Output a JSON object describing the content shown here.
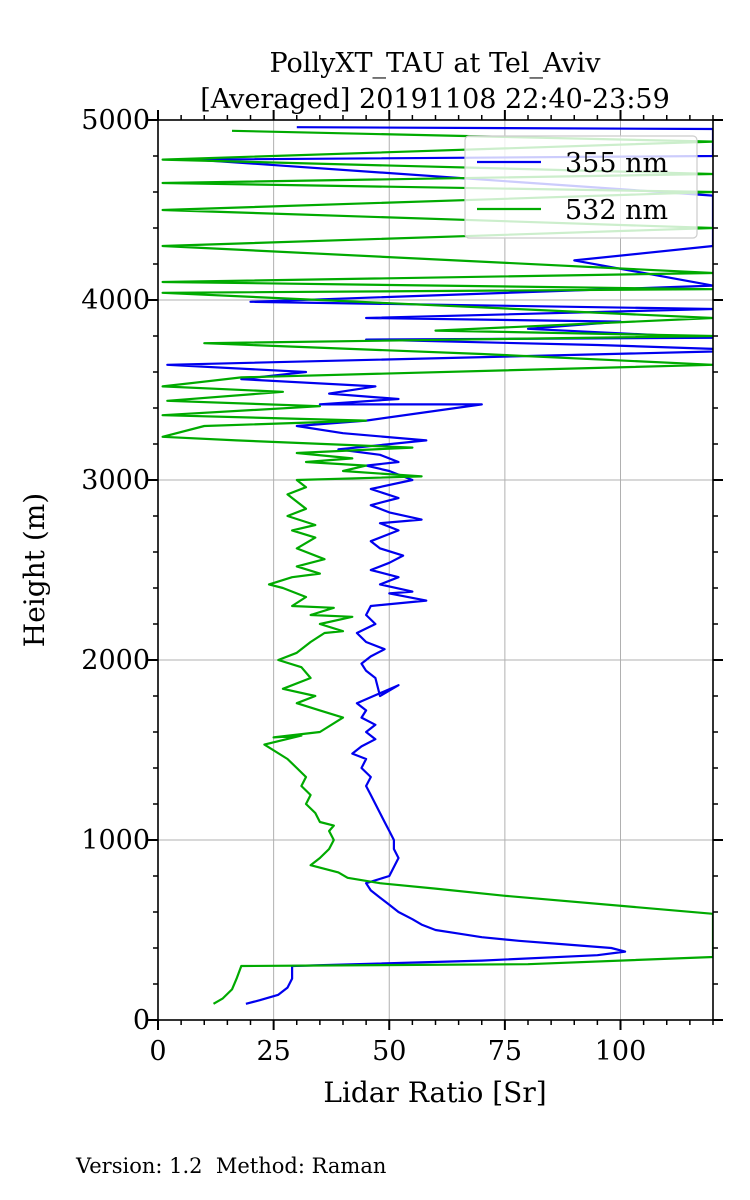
{
  "chart_data": {
    "type": "line",
    "title": "PollyXT_TAU at Tel_Aviv",
    "subtitle": "[Averaged] 20191108 22:40-23:59",
    "xlabel": "Lidar Ratio [Sr]",
    "ylabel": "Height (m)",
    "xlim": [
      0,
      120
    ],
    "ylim": [
      0,
      5000
    ],
    "xticks": [
      0,
      25,
      50,
      75,
      100
    ],
    "yticks": [
      0,
      1000,
      2000,
      3000,
      4000,
      5000
    ],
    "grid": true,
    "legend_position": "top-right",
    "series": [
      {
        "name": "355 nm",
        "color": "#0000ee",
        "points": [
          [
            19,
            90
          ],
          [
            22,
            110
          ],
          [
            26,
            140
          ],
          [
            28,
            180
          ],
          [
            29,
            230
          ],
          [
            29,
            300
          ],
          [
            70,
            330
          ],
          [
            95,
            360
          ],
          [
            101,
            380
          ],
          [
            98,
            400
          ],
          [
            88,
            420
          ],
          [
            78,
            440
          ],
          [
            70,
            460
          ],
          [
            65,
            480
          ],
          [
            60,
            500
          ],
          [
            57,
            530
          ],
          [
            55,
            560
          ],
          [
            52,
            600
          ],
          [
            50,
            640
          ],
          [
            48,
            680
          ],
          [
            46,
            720
          ],
          [
            45,
            760
          ],
          [
            50,
            800
          ],
          [
            51,
            850
          ],
          [
            52,
            900
          ],
          [
            51,
            950
          ],
          [
            51,
            1000
          ],
          [
            50,
            1050
          ],
          [
            49,
            1100
          ],
          [
            48,
            1150
          ],
          [
            47,
            1200
          ],
          [
            46,
            1250
          ],
          [
            45,
            1300
          ],
          [
            46,
            1350
          ],
          [
            44,
            1400
          ],
          [
            45,
            1450
          ],
          [
            42,
            1480
          ],
          [
            44,
            1520
          ],
          [
            47,
            1560
          ],
          [
            45,
            1600
          ],
          [
            47,
            1640
          ],
          [
            44,
            1680
          ],
          [
            45,
            1720
          ],
          [
            43,
            1760
          ],
          [
            52,
            1860
          ],
          [
            48,
            1800
          ],
          [
            47,
            1900
          ],
          [
            45,
            1940
          ],
          [
            44,
            1980
          ],
          [
            46,
            2020
          ],
          [
            49,
            2060
          ],
          [
            45,
            2100
          ],
          [
            43,
            2150
          ],
          [
            47,
            2200
          ],
          [
            45,
            2250
          ],
          [
            46,
            2300
          ],
          [
            58,
            2330
          ],
          [
            50,
            2370
          ],
          [
            55,
            2380
          ],
          [
            48,
            2420
          ],
          [
            52,
            2460
          ],
          [
            46,
            2500
          ],
          [
            50,
            2540
          ],
          [
            53,
            2580
          ],
          [
            48,
            2620
          ],
          [
            46,
            2660
          ],
          [
            52,
            2720
          ],
          [
            48,
            2760
          ],
          [
            57,
            2780
          ],
          [
            50,
            2820
          ],
          [
            46,
            2860
          ],
          [
            52,
            2900
          ],
          [
            46,
            2950
          ],
          [
            55,
            3000
          ],
          [
            50,
            3050
          ],
          [
            45,
            3080
          ],
          [
            52,
            3100
          ],
          [
            48,
            3140
          ],
          [
            39,
            3170
          ],
          [
            58,
            3220
          ],
          [
            40,
            3260
          ],
          [
            30,
            3300
          ],
          [
            45,
            3330
          ],
          [
            70,
            3420
          ],
          [
            35,
            3420
          ],
          [
            52,
            3450
          ],
          [
            37,
            3480
          ],
          [
            47,
            3520
          ],
          [
            18,
            3560
          ],
          [
            32,
            3600
          ],
          [
            2,
            3640
          ],
          [
            130,
            3720
          ],
          [
            95,
            3750
          ],
          [
            45,
            3780
          ],
          [
            120,
            3790
          ],
          [
            80,
            3840
          ],
          [
            100,
            3880
          ],
          [
            45,
            3900
          ],
          [
            120,
            3950
          ],
          [
            20,
            3990
          ],
          [
            120,
            4080
          ],
          [
            90,
            4220
          ],
          [
            120,
            4300
          ],
          [
            120,
            4380
          ],
          [
            120,
            4500
          ],
          [
            120,
            4580
          ],
          [
            8,
            4780
          ],
          [
            120,
            4800
          ],
          [
            120,
            4950
          ],
          [
            30,
            4960
          ]
        ]
      },
      {
        "name": "532 nm",
        "color": "#00aa00",
        "points": [
          [
            12,
            90
          ],
          [
            14,
            120
          ],
          [
            16,
            170
          ],
          [
            17,
            230
          ],
          [
            18,
            300
          ],
          [
            80,
            310
          ],
          [
            120,
            350
          ],
          [
            120,
            400
          ],
          [
            120,
            500
          ],
          [
            120,
            590
          ],
          [
            75,
            690
          ],
          [
            60,
            730
          ],
          [
            48,
            760
          ],
          [
            41,
            790
          ],
          [
            39,
            820
          ],
          [
            36,
            840
          ],
          [
            33,
            860
          ],
          [
            35,
            900
          ],
          [
            37,
            950
          ],
          [
            38,
            1000
          ],
          [
            37,
            1050
          ],
          [
            38,
            1080
          ],
          [
            35,
            1100
          ],
          [
            34,
            1150
          ],
          [
            32,
            1200
          ],
          [
            33,
            1250
          ],
          [
            31,
            1300
          ],
          [
            32,
            1350
          ],
          [
            30,
            1400
          ],
          [
            28,
            1450
          ],
          [
            23,
            1530
          ],
          [
            31,
            1580
          ],
          [
            25,
            1570
          ],
          [
            35,
            1600
          ],
          [
            40,
            1680
          ],
          [
            35,
            1720
          ],
          [
            30,
            1760
          ],
          [
            34,
            1800
          ],
          [
            27,
            1840
          ],
          [
            33,
            1900
          ],
          [
            31,
            1960
          ],
          [
            26,
            2000
          ],
          [
            30,
            2040
          ],
          [
            33,
            2100
          ],
          [
            36,
            2150
          ],
          [
            40,
            2160
          ],
          [
            35,
            2200
          ],
          [
            42,
            2240
          ],
          [
            33,
            2250
          ],
          [
            38,
            2290
          ],
          [
            29,
            2300
          ],
          [
            32,
            2350
          ],
          [
            27,
            2400
          ],
          [
            24,
            2420
          ],
          [
            29,
            2460
          ],
          [
            35,
            2480
          ],
          [
            30,
            2520
          ],
          [
            36,
            2560
          ],
          [
            30,
            2620
          ],
          [
            34,
            2680
          ],
          [
            29,
            2720
          ],
          [
            34,
            2750
          ],
          [
            28,
            2800
          ],
          [
            32,
            2840
          ],
          [
            30,
            2880
          ],
          [
            28,
            2920
          ],
          [
            32,
            2960
          ],
          [
            30,
            3000
          ],
          [
            57,
            3020
          ],
          [
            40,
            3050
          ],
          [
            45,
            3080
          ],
          [
            32,
            3100
          ],
          [
            42,
            3120
          ],
          [
            30,
            3150
          ],
          [
            55,
            3180
          ],
          [
            17,
            3220
          ],
          [
            1,
            3240
          ],
          [
            10,
            3300
          ],
          [
            45,
            3330
          ],
          [
            1,
            3360
          ],
          [
            35,
            3410
          ],
          [
            2,
            3440
          ],
          [
            27,
            3490
          ],
          [
            1,
            3520
          ],
          [
            18,
            3570
          ],
          [
            120,
            3640
          ],
          [
            70,
            3700
          ],
          [
            10,
            3760
          ],
          [
            120,
            3800
          ],
          [
            60,
            3830
          ],
          [
            120,
            3900
          ],
          [
            1,
            4040
          ],
          [
            120,
            4060
          ],
          [
            1,
            4100
          ],
          [
            120,
            4150
          ],
          [
            1,
            4300
          ],
          [
            120,
            4400
          ],
          [
            1,
            4500
          ],
          [
            120,
            4600
          ],
          [
            1,
            4650
          ],
          [
            120,
            4700
          ],
          [
            1,
            4780
          ],
          [
            120,
            4880
          ],
          [
            16,
            4940
          ]
        ]
      }
    ]
  },
  "footer": "Version: 1.2  Method: Raman"
}
